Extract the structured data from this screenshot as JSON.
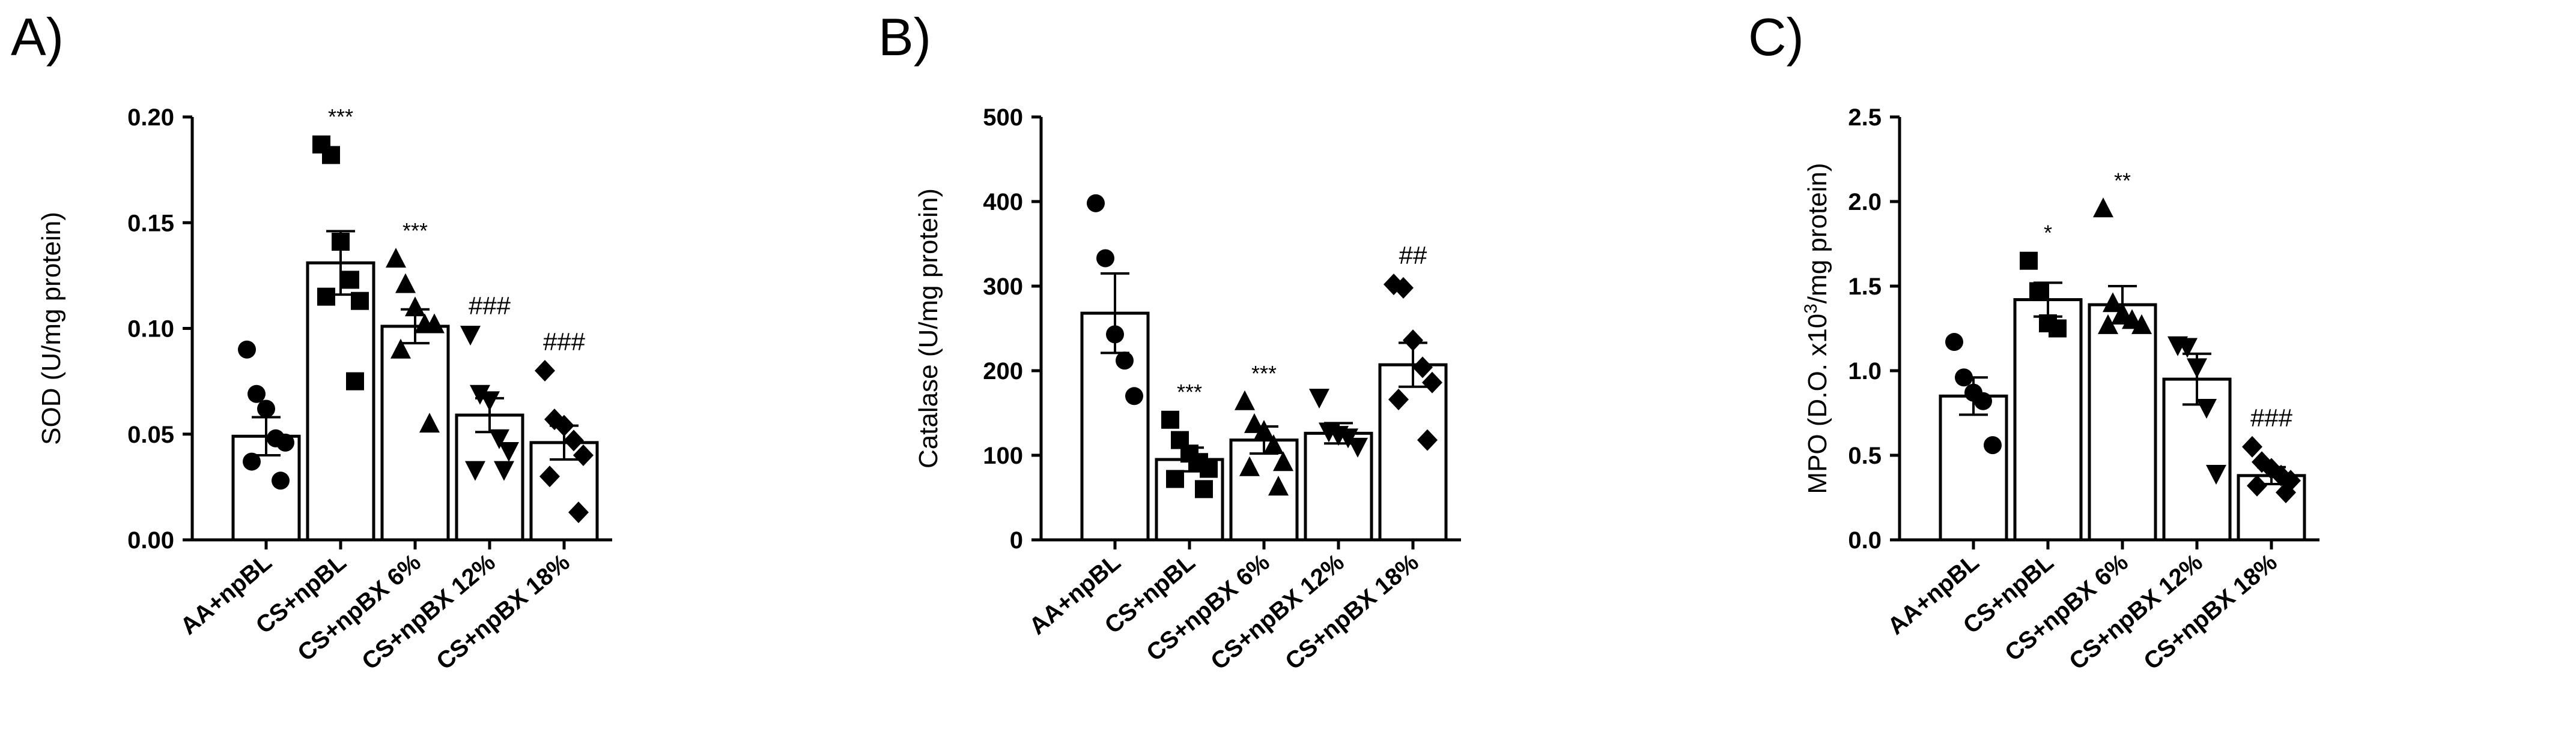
{
  "chart_data": [
    {
      "type": "bar",
      "panel_label": "A)",
      "ylabel_main": "SOD (U/mg protein)",
      "ylim": [
        0,
        0.2
      ],
      "yticks": [
        "0.00",
        "0.05",
        "0.10",
        "0.15",
        "0.20"
      ],
      "categories": [
        "AA+npBL",
        "CS+npBL",
        "CS+npBX 6%",
        "CS+npBX 12%",
        "CS+npBX 18%"
      ],
      "markers": [
        "circle",
        "square",
        "triangle-up",
        "triangle-down",
        "diamond"
      ],
      "values": [
        0.049,
        0.131,
        0.101,
        0.059,
        0.046
      ],
      "sem": [
        0.009,
        0.015,
        0.008,
        0.008,
        0.008
      ],
      "points": [
        [
          0.09,
          0.069,
          0.062,
          0.048,
          0.046,
          0.037,
          0.028
        ],
        [
          0.187,
          0.182,
          0.141,
          0.123,
          0.113,
          0.115,
          0.075
        ],
        [
          0.133,
          0.121,
          0.11,
          0.102,
          0.102,
          0.09,
          0.055
        ],
        [
          0.097,
          0.069,
          0.066,
          0.048,
          0.042,
          0.033,
          0.033
        ],
        [
          0.08,
          0.057,
          0.054,
          0.047,
          0.04,
          0.03,
          0.013
        ]
      ],
      "significance": [
        "",
        "***",
        "***",
        "###",
        "###"
      ]
    },
    {
      "type": "bar",
      "panel_label": "B)",
      "ylabel_main": "Catalase (U/mg protein)",
      "ylim": [
        0,
        500
      ],
      "yticks": [
        "0",
        "100",
        "200",
        "300",
        "400",
        "500"
      ],
      "categories": [
        "AA+npBL",
        "CS+npBL",
        "CS+npBX 6%",
        "CS+npBX 12%",
        "CS+npBX 18%"
      ],
      "markers": [
        "circle",
        "square",
        "triangle-up",
        "triangle-down",
        "diamond"
      ],
      "values": [
        268,
        95,
        118,
        126,
        207
      ],
      "sem": [
        47,
        14,
        16,
        12,
        26
      ],
      "points": [
        [
          398,
          333,
          243,
          212,
          170
        ],
        [
          142,
          118,
          102,
          92,
          84,
          72,
          60
        ],
        [
          164,
          137,
          129,
          112,
          92,
          86,
          63
        ],
        [
          168,
          128,
          124,
          121,
          110
        ],
        [
          302,
          298,
          236,
          204,
          186,
          166,
          118
        ]
      ],
      "significance": [
        "",
        "***",
        "***",
        "",
        "##"
      ]
    },
    {
      "type": "bar",
      "panel_label": "C)",
      "ylabel_main": "MPO (D.O. x10",
      "ylabel_sup": "3",
      "ylabel_tail": "/mg protein)",
      "ylim": [
        0,
        2.5
      ],
      "yticks": [
        "0.0",
        "0.5",
        "1.0",
        "1.5",
        "2.0",
        "2.5"
      ],
      "categories": [
        "AA+npBL",
        "CS+npBL",
        "CS+npBX 6%",
        "CS+npBX 12%",
        "CS+npBX 18%"
      ],
      "markers": [
        "circle",
        "square",
        "triangle-up",
        "triangle-down",
        "diamond"
      ],
      "values": [
        0.85,
        1.42,
        1.39,
        0.95,
        0.38
      ],
      "sem": [
        0.11,
        0.1,
        0.11,
        0.15,
        0.05
      ],
      "points": [
        [
          1.17,
          0.96,
          0.87,
          0.82,
          0.56
        ],
        [
          1.65,
          1.47,
          1.28,
          1.25
        ],
        [
          1.96,
          1.4,
          1.34,
          1.3,
          1.27,
          1.27
        ],
        [
          1.15,
          1.14,
          1.02,
          0.78,
          0.39
        ],
        [
          0.55,
          0.46,
          0.42,
          0.38,
          0.35,
          0.32,
          0.28
        ]
      ],
      "significance": [
        "",
        "*",
        "**",
        "",
        "###"
      ]
    }
  ]
}
